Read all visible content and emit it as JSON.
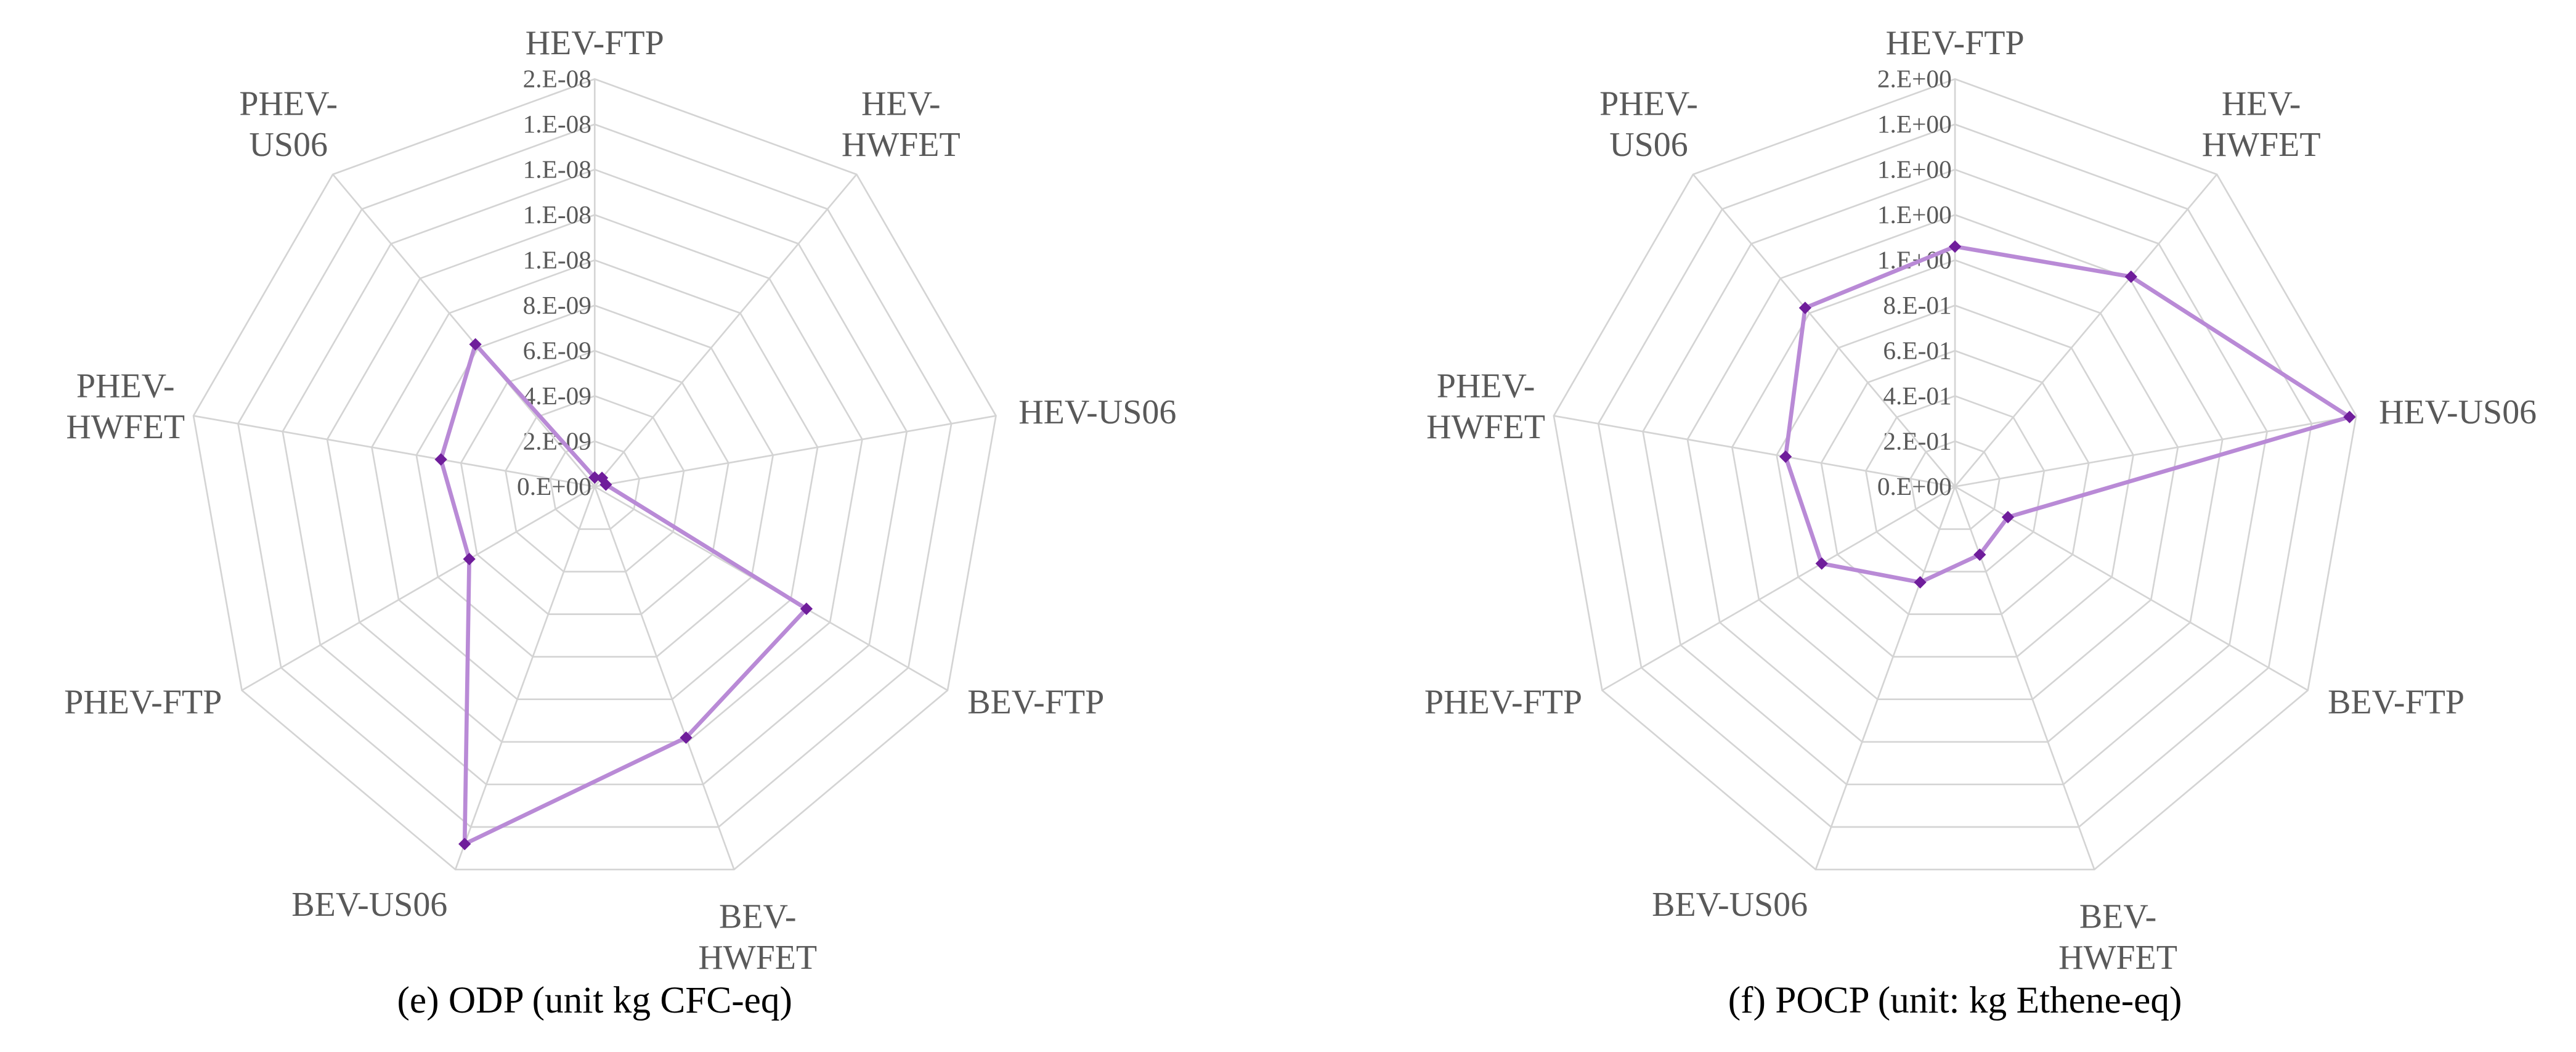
{
  "chart_data": [
    {
      "type": "radar",
      "title": "(e) ODP (unit kg CFC-eq)",
      "categories": [
        "HEV-FTP",
        "HEV-HWFET",
        "HEV-US06",
        "BEV-FTP",
        "BEV-HWFET",
        "BEV-US06",
        "PHEV-FTP",
        "PHEV-HWFET",
        "PHEV-US06"
      ],
      "values": [
        4e-10,
        5e-10,
        5e-10,
        1.08e-08,
        1.18e-08,
        1.68e-08,
        6.4e-09,
        6.9e-09,
        8.2e-09
      ],
      "color": "#b98ad6",
      "marker_color": "#6f1d9b",
      "rlim": [
        0,
        1.8e-08
      ],
      "rticks": [
        {
          "value": 0,
          "label": "0.E+00"
        },
        {
          "value": 2e-09,
          "label": "2.E-09"
        },
        {
          "value": 4e-09,
          "label": "4.E-09"
        },
        {
          "value": 6e-09,
          "label": "6.E-09"
        },
        {
          "value": 8e-09,
          "label": "8.E-09"
        },
        {
          "value": 1e-08,
          "label": "1.E-08"
        },
        {
          "value": 1.2e-08,
          "label": "1.E-08"
        },
        {
          "value": 1.4e-08,
          "label": "1.E-08"
        },
        {
          "value": 1.6e-08,
          "label": "1.E-08"
        },
        {
          "value": 1.8e-08,
          "label": "2.E-08"
        }
      ],
      "grid": true
    },
    {
      "type": "radar",
      "title": "(f) POCP (unit: kg Ethene-eq)",
      "categories": [
        "HEV-FTP",
        "HEV-HWFET",
        "HEV-US06",
        "BEV-FTP",
        "BEV-HWFET",
        "BEV-US06",
        "PHEV-FTP",
        "PHEV-HWFET",
        "PHEV-US06"
      ],
      "values": [
        1.06,
        1.21,
        1.77,
        0.27,
        0.32,
        0.45,
        0.68,
        0.76,
        1.03
      ],
      "color": "#b98ad6",
      "marker_color": "#6f1d9b",
      "rlim": [
        0,
        1.8
      ],
      "rticks": [
        {
          "value": 0,
          "label": "0.E+00"
        },
        {
          "value": 0.2,
          "label": "2.E-01"
        },
        {
          "value": 0.4,
          "label": "4.E-01"
        },
        {
          "value": 0.6,
          "label": "6.E-01"
        },
        {
          "value": 0.8,
          "label": "8.E-01"
        },
        {
          "value": 1.0,
          "label": "1.E+00"
        },
        {
          "value": 1.2,
          "label": "1.E+00"
        },
        {
          "value": 1.4,
          "label": "1.E+00"
        },
        {
          "value": 1.6,
          "label": "1.E+00"
        },
        {
          "value": 1.8,
          "label": "2.E+00"
        }
      ],
      "grid": true
    }
  ]
}
